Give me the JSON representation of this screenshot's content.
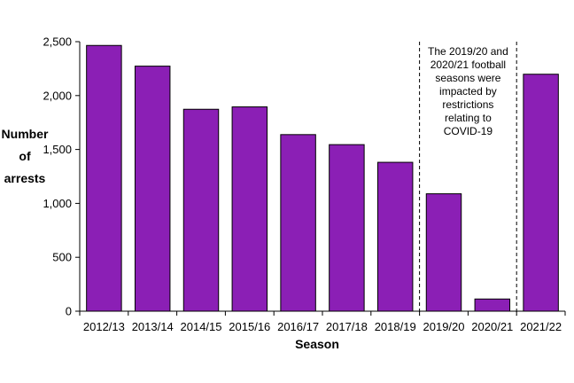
{
  "chart_data": {
    "type": "bar",
    "title": "",
    "xlabel": "Season",
    "ylabel_lines": [
      "Number",
      "of",
      "arrests"
    ],
    "categories": [
      "2012/13",
      "2013/14",
      "2014/15",
      "2015/16",
      "2016/17",
      "2017/18",
      "2018/19",
      "2019/20",
      "2020/21",
      "2021/22"
    ],
    "values": [
      2465,
      2273,
      1873,
      1895,
      1638,
      1545,
      1381,
      1089,
      113,
      2198
    ],
    "ylim": [
      0,
      2500
    ],
    "yticks": [
      0,
      500,
      1000,
      1500,
      2000,
      2500
    ],
    "ytick_labels": [
      "0",
      "500",
      "1,000",
      "1,500",
      "2,000",
      "2,500"
    ],
    "grid": false,
    "bar_color": "#8B1FB5",
    "bar_edge_color": "#000000",
    "annotation": {
      "lines": [
        "The 2019/20 and",
        "2020/21 football",
        "seasons were",
        "impacted by",
        "restrictions",
        "relating to",
        "COVID-19"
      ],
      "bracket_start_category": "2019/20",
      "bracket_end_category": "2020/21"
    }
  }
}
